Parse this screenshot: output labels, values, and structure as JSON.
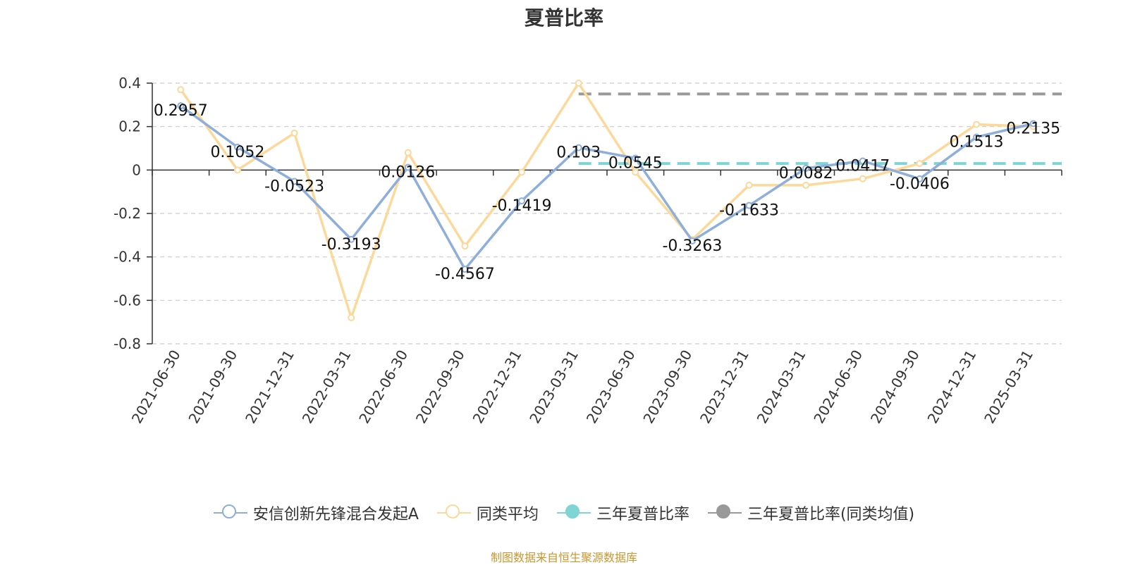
{
  "chart_data": {
    "type": "line",
    "title": "夏普比率",
    "categories": [
      "2021-06-30",
      "2021-09-30",
      "2021-12-31",
      "2022-03-31",
      "2022-06-30",
      "2022-09-30",
      "2022-12-31",
      "2023-03-31",
      "2023-06-30",
      "2023-09-30",
      "2023-12-31",
      "2024-03-31",
      "2024-06-30",
      "2024-09-30",
      "2024-12-31",
      "2025-03-31"
    ],
    "ylim": [
      -0.8,
      0.4
    ],
    "yticks": [
      0.4,
      0.2,
      0,
      -0.2,
      -0.4,
      -0.6,
      -0.8
    ],
    "grid": true,
    "legend_position": "bottom",
    "series": [
      {
        "name": "安信创新先锋混合发起A",
        "color": "#8eaedb",
        "data_labels": true,
        "values": [
          0.2957,
          0.1052,
          -0.0523,
          -0.3193,
          0.0126,
          -0.4567,
          -0.1419,
          0.103,
          0.0545,
          -0.3263,
          -0.1633,
          0.0082,
          0.0417,
          -0.0406,
          0.1513,
          0.2135
        ]
      },
      {
        "name": "同类平均",
        "color": "#fcd99a",
        "data_labels": false,
        "values": [
          0.37,
          0.0,
          0.17,
          -0.68,
          0.08,
          -0.35,
          -0.01,
          0.4,
          -0.01,
          -0.32,
          -0.07,
          -0.07,
          -0.04,
          0.03,
          0.21,
          0.2
        ]
      },
      {
        "name": "三年夏普比率",
        "color": "#7fd4d4",
        "type": "hline",
        "value": 0.03,
        "from": "2023-03-31",
        "to": "2025-03-31"
      },
      {
        "name": "三年夏普比率(同类均值)",
        "color": "#999999",
        "type": "hline",
        "value": 0.35,
        "from": "2023-03-31",
        "to": "2025-03-31"
      }
    ]
  },
  "source_note": "制图数据来自恒生聚源数据库"
}
